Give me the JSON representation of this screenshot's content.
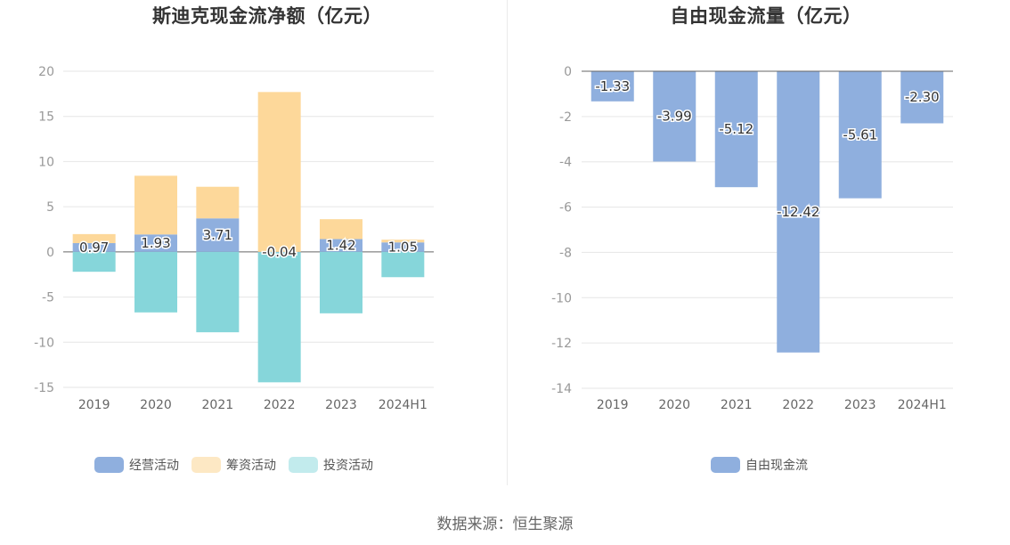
{
  "source_text": "数据来源：恒生聚源",
  "chart_data": [
    {
      "type": "bar",
      "stacked": true,
      "title": "斯迪克现金流净额（亿元）",
      "categories": [
        "2019",
        "2020",
        "2021",
        "2022",
        "2023",
        "2024H1"
      ],
      "ylim": [
        -15,
        20
      ],
      "yticks": [
        20,
        15,
        10,
        5,
        0,
        -5,
        -10,
        -15
      ],
      "grid": true,
      "legend_position": "bottom",
      "series": [
        {
          "name": "经营活动",
          "color": "#8FAFDE",
          "values": [
            0.97,
            1.93,
            3.71,
            -0.04,
            1.42,
            1.05
          ],
          "labels": [
            "0.97",
            "1.93",
            "3.71",
            "-0.04",
            "1.42",
            "1.05"
          ]
        },
        {
          "name": "筹资活动",
          "color": "#FDD89A",
          "values": [
            1.0,
            6.5,
            3.5,
            17.7,
            2.2,
            0.3
          ]
        },
        {
          "name": "投资活动",
          "color": "#86D6DA",
          "values": [
            -2.2,
            -6.7,
            -8.9,
            -14.4,
            -6.8,
            -2.8
          ]
        }
      ]
    },
    {
      "type": "bar",
      "title": "自由现金流量（亿元）",
      "categories": [
        "2019",
        "2020",
        "2021",
        "2022",
        "2023",
        "2024H1"
      ],
      "ylim": [
        -14,
        0
      ],
      "yticks": [
        0,
        -2,
        -4,
        -6,
        -8,
        -10,
        -12,
        -14
      ],
      "grid": true,
      "legend_position": "bottom",
      "series": [
        {
          "name": "自由现金流",
          "color": "#8FAFDE",
          "values": [
            -1.33,
            -3.99,
            -5.12,
            -12.42,
            -5.61,
            -2.3
          ],
          "labels": [
            "-1.33",
            "-3.99",
            "-5.12",
            "-12.42",
            "-5.61",
            "-2.30"
          ]
        }
      ]
    }
  ]
}
